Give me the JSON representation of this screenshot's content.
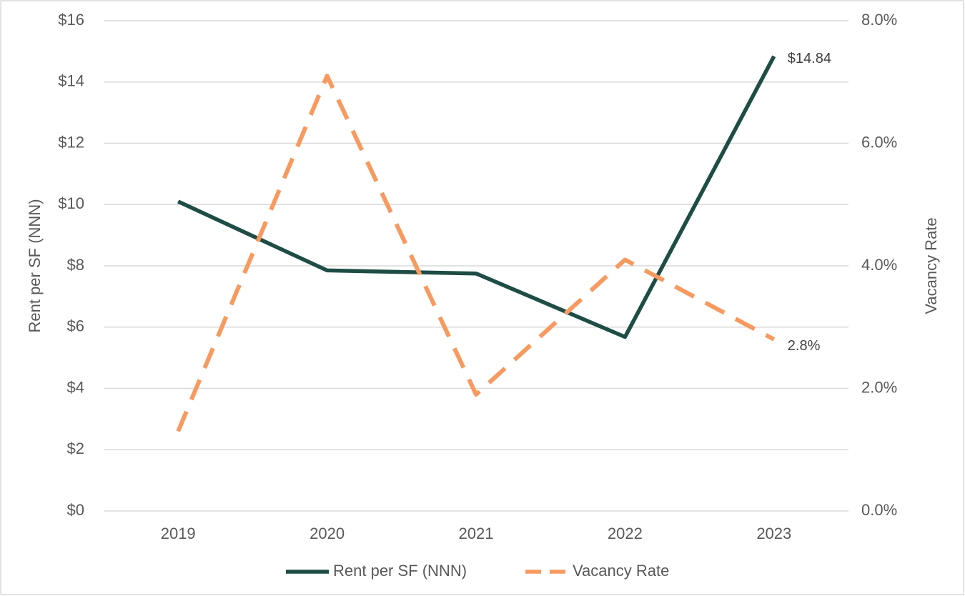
{
  "chart_data": {
    "type": "line",
    "categories": [
      "2019",
      "2020",
      "2021",
      "2022",
      "2023"
    ],
    "series": [
      {
        "name": "Rent per SF (NNN)",
        "color": "#1e4d45",
        "values": [
          10.1,
          7.85,
          7.75,
          5.68,
          14.84
        ],
        "value_labels": [
          null,
          null,
          null,
          null,
          "$14.84"
        ]
      },
      {
        "name": "Vacancy Rate",
        "color": "#f79a5f",
        "dashed": true,
        "axis": "y2",
        "values": [
          1.3,
          7.1,
          1.9,
          4.1,
          2.8
        ],
        "value_labels": [
          null,
          null,
          null,
          null,
          "2.8%"
        ]
      }
    ],
    "ylabel": "Rent per SF (NNN)",
    "y2label": "Vacancy Rate",
    "ylim": [
      0,
      16
    ],
    "yticks": [
      {
        "value": 0,
        "label": "$0"
      },
      {
        "value": 2,
        "label": "$2"
      },
      {
        "value": 4,
        "label": "$4"
      },
      {
        "value": 6,
        "label": "$6"
      },
      {
        "value": 8,
        "label": "$8"
      },
      {
        "value": 10,
        "label": "$10"
      },
      {
        "value": 12,
        "label": "$12"
      },
      {
        "value": 14,
        "label": "$14"
      },
      {
        "value": 16,
        "label": "$16"
      }
    ],
    "y2lim": [
      0,
      8
    ],
    "y2ticks": [
      {
        "value": 0,
        "label": "0.0%"
      },
      {
        "value": 2,
        "label": "2.0%"
      },
      {
        "value": 4,
        "label": "4.0%"
      },
      {
        "value": 6,
        "label": "6.0%"
      },
      {
        "value": 8,
        "label": "8.0%"
      }
    ],
    "grid": true,
    "legend": "bottom"
  }
}
